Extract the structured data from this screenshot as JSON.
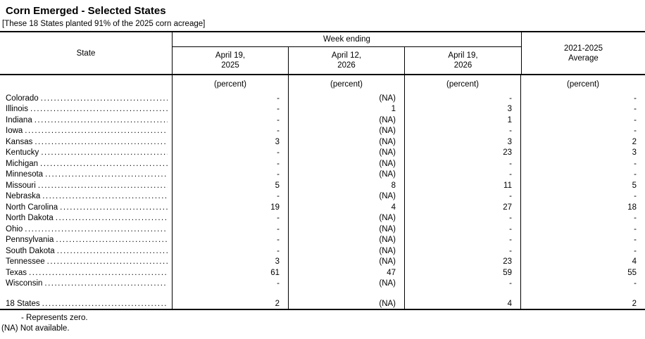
{
  "title": "Corn Emerged - Selected States",
  "subtitle": "[These 18 States planted 91% of the 2025 corn acreage]",
  "table": {
    "state_header": "State",
    "group_header": "Week ending",
    "avg_header": "2021-2025\nAverage",
    "week_columns": [
      "April 19,\n2025",
      "April 12,\n2026",
      "April 19,\n2026"
    ],
    "unit": "(percent)",
    "rows": [
      {
        "state": "Colorado",
        "values": [
          "-",
          "(NA)",
          "-",
          "-"
        ]
      },
      {
        "state": "Illinois",
        "values": [
          "-",
          "1",
          "3",
          "-"
        ]
      },
      {
        "state": "Indiana",
        "values": [
          "-",
          "(NA)",
          "1",
          "-"
        ]
      },
      {
        "state": "Iowa",
        "values": [
          "-",
          "(NA)",
          "-",
          "-"
        ]
      },
      {
        "state": "Kansas",
        "values": [
          "3",
          "(NA)",
          "3",
          "2"
        ]
      },
      {
        "state": "Kentucky",
        "values": [
          "-",
          "(NA)",
          "23",
          "3"
        ]
      },
      {
        "state": "Michigan",
        "values": [
          "-",
          "(NA)",
          "-",
          "-"
        ]
      },
      {
        "state": "Minnesota",
        "values": [
          "-",
          "(NA)",
          "-",
          "-"
        ]
      },
      {
        "state": "Missouri",
        "values": [
          "5",
          "8",
          "11",
          "5"
        ]
      },
      {
        "state": "Nebraska",
        "values": [
          "-",
          "(NA)",
          "-",
          "-"
        ]
      },
      {
        "state": "North Carolina",
        "values": [
          "19",
          "4",
          "27",
          "18"
        ]
      },
      {
        "state": "North Dakota",
        "values": [
          "-",
          "(NA)",
          "-",
          "-"
        ]
      },
      {
        "state": "Ohio",
        "values": [
          "-",
          "(NA)",
          "-",
          "-"
        ]
      },
      {
        "state": "Pennsylvania",
        "values": [
          "-",
          "(NA)",
          "-",
          "-"
        ]
      },
      {
        "state": "South Dakota",
        "values": [
          "-",
          "(NA)",
          "-",
          "-"
        ]
      },
      {
        "state": "Tennessee",
        "values": [
          "3",
          "(NA)",
          "23",
          "4"
        ]
      },
      {
        "state": "Texas",
        "values": [
          "61",
          "47",
          "59",
          "55"
        ]
      },
      {
        "state": "Wisconsin",
        "values": [
          "-",
          "(NA)",
          "-",
          "-"
        ]
      }
    ],
    "total_row": {
      "state": "18 States",
      "values": [
        "2",
        "(NA)",
        "4",
        "2"
      ]
    }
  },
  "footnotes": {
    "zero": "- Represents zero.",
    "na": "(NA) Not available."
  }
}
